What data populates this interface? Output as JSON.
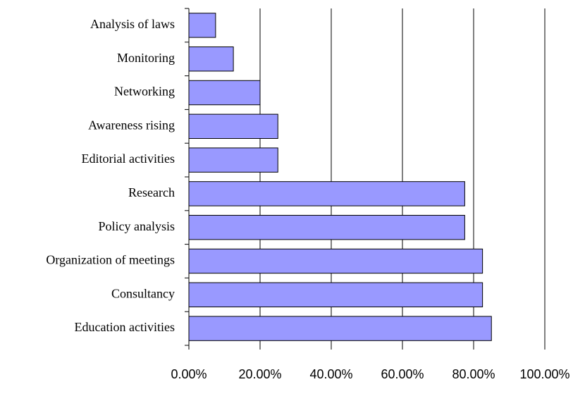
{
  "chart_data": {
    "type": "barh",
    "categories": [
      "Analysis of laws",
      "Monitoring",
      "Networking",
      "Awareness rising",
      "Editorial activities",
      "Research",
      "Policy analysis",
      "Organization of meetings",
      "Consultancy",
      "Education activities"
    ],
    "values": [
      7.5,
      12.5,
      20,
      25,
      25,
      77.5,
      77.5,
      82.5,
      82.5,
      85
    ],
    "color": "#9999ff",
    "xlim": [
      0,
      100
    ],
    "xticks": [
      {
        "value": 0,
        "label": "0.00%"
      },
      {
        "value": 20,
        "label": "20.00%"
      },
      {
        "value": 40,
        "label": "40.00%"
      },
      {
        "value": 60,
        "label": "60.00%"
      },
      {
        "value": 80,
        "label": "80.00%"
      },
      {
        "value": 100,
        "label": "100.00%"
      }
    ],
    "grid": true
  }
}
